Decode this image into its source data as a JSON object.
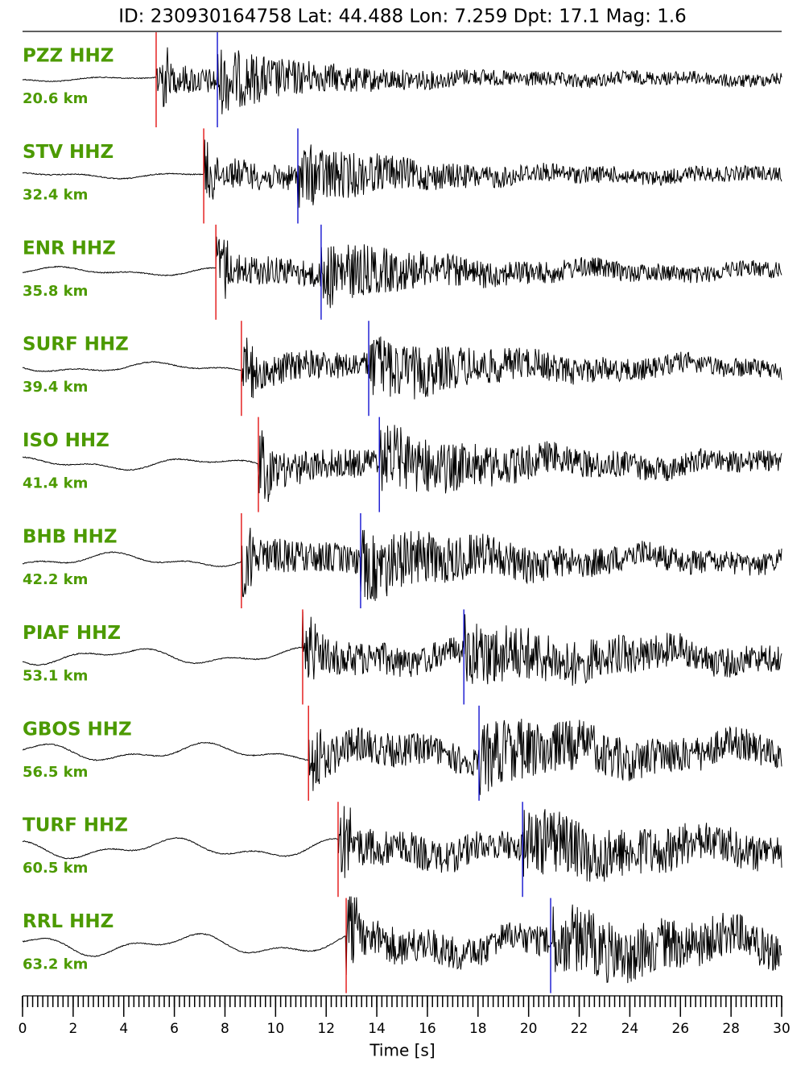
{
  "chart_data": {
    "type": "seismogram",
    "title": "ID: 230930164758 Lat:  44.488 Lon:   7.259 Dpt:    17.1 Mag:   1.6",
    "xlabel": "Time [s]",
    "xlim": [
      0,
      30
    ],
    "xticks": [
      0,
      2,
      4,
      6,
      8,
      10,
      12,
      14,
      16,
      18,
      20,
      22,
      24,
      26,
      28,
      30
    ],
    "x_minor_step": 0.2,
    "label_color": "#4c9a00",
    "trace_color": "#000000",
    "p_color": "#e00000",
    "s_color": "#0000cc",
    "series": [
      {
        "name": "PZZ HHZ",
        "distance": "20.6 km",
        "p_pick": 5.28,
        "s_pick": 7.7
      },
      {
        "name": "STV HHZ",
        "distance": "32.4 km",
        "p_pick": 7.16,
        "s_pick": 10.88
      },
      {
        "name": "ENR HHZ",
        "distance": "35.8 km",
        "p_pick": 7.64,
        "s_pick": 11.8
      },
      {
        "name": "SURF HHZ",
        "distance": "39.4 km",
        "p_pick": 8.65,
        "s_pick": 13.68
      },
      {
        "name": "ISO HHZ",
        "distance": "41.4 km",
        "p_pick": 9.32,
        "s_pick": 14.1
      },
      {
        "name": "BHB HHZ",
        "distance": "42.2 km",
        "p_pick": 8.65,
        "s_pick": 13.36
      },
      {
        "name": "PIAF HHZ",
        "distance": "53.1 km",
        "p_pick": 11.07,
        "s_pick": 17.44
      },
      {
        "name": "GBOS HHZ",
        "distance": "56.5 km",
        "p_pick": 11.3,
        "s_pick": 18.04
      },
      {
        "name": "TURF HHZ",
        "distance": "60.5 km",
        "p_pick": 12.47,
        "s_pick": 19.76
      },
      {
        "name": "RRL HHZ",
        "distance": "63.2 km",
        "p_pick": 12.79,
        "s_pick": 20.87
      }
    ]
  }
}
